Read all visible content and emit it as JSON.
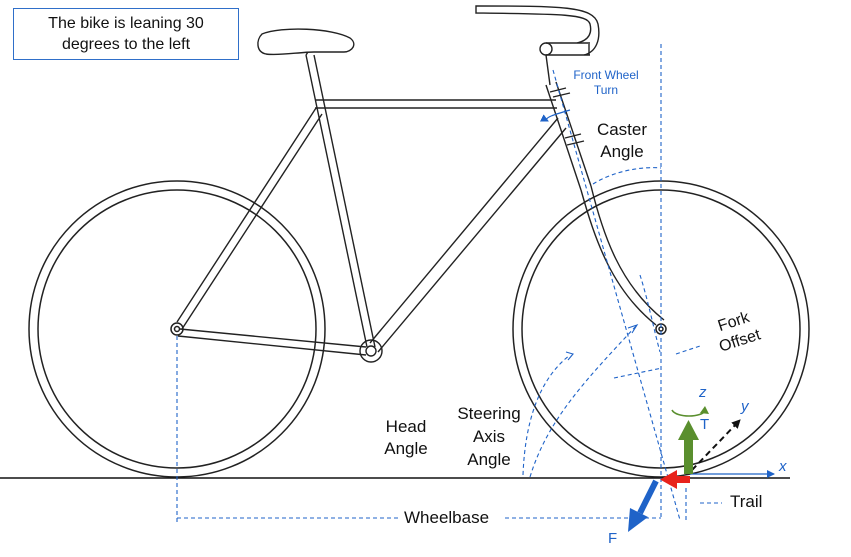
{
  "note": {
    "line1": "The bike is leaning 30",
    "line2": "degrees to the left"
  },
  "labels": {
    "front_wheel_turn_1": "Front Wheel",
    "front_wheel_turn_2": "Turn",
    "caster_1": "Caster",
    "caster_2": "Angle",
    "fork_1": "Fork",
    "fork_2": "Offset",
    "head_1": "Head",
    "head_2": "Angle",
    "steering_1": "Steering",
    "steering_2": "Axis",
    "steering_3": "Angle",
    "wheelbase": "Wheelbase",
    "trail": "Trail",
    "axis_x": "x",
    "axis_y": "y",
    "axis_z": "z",
    "torque": "T",
    "force": "F"
  },
  "colors": {
    "frame": "#222222",
    "guide": "#1f63c8",
    "torque": "#5a8f2e",
    "force_red": "#e8231c",
    "force_blue": "#1f63c8"
  }
}
